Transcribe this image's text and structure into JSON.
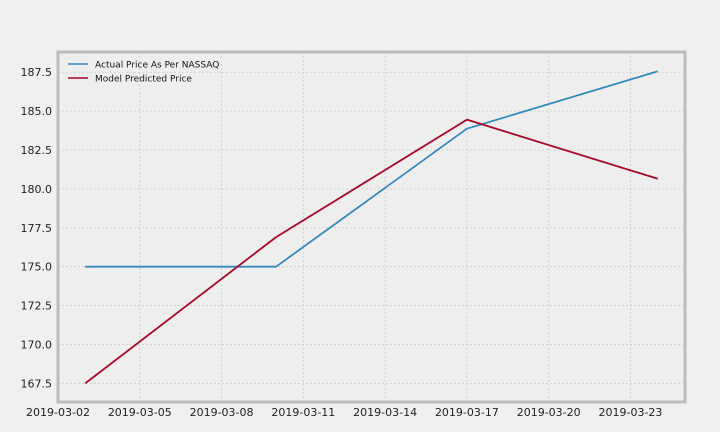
{
  "chart_data": {
    "type": "line",
    "title": "",
    "xlabel": "",
    "ylabel": "",
    "x": [
      "2019-03-03",
      "2019-03-10",
      "2019-03-17",
      "2019-03-24"
    ],
    "series": [
      {
        "name": "Actual Price As Per NASSAQ",
        "color": "#348abd",
        "values": [
          175.0,
          175.0,
          183.87,
          187.56
        ]
      },
      {
        "name": "Model Predicted Price",
        "color": "#a60628",
        "values": [
          167.5,
          176.9,
          184.45,
          180.65
        ]
      }
    ],
    "xlim": [
      "2019-03-02",
      "2019-03-25"
    ],
    "ylim": [
      166.3,
      188.8
    ],
    "x_ticks": [
      "2019-03-02",
      "2019-03-05",
      "2019-03-08",
      "2019-03-11",
      "2019-03-14",
      "2019-03-17",
      "2019-03-20",
      "2019-03-23"
    ],
    "y_ticks": [
      167.5,
      170.0,
      172.5,
      175.0,
      177.5,
      180.0,
      182.5,
      185.0,
      187.5
    ],
    "y_tick_labels": [
      "167.5",
      "170.0",
      "172.5",
      "175.0",
      "177.5",
      "180.0",
      "182.5",
      "185.0",
      "187.5"
    ],
    "grid": true,
    "legend_position": "top-left",
    "background": "#eeeeee",
    "figure_background": "#f0f0f0",
    "grid_color": "#cbcbcb",
    "spine_color": "#bcbcbc"
  }
}
